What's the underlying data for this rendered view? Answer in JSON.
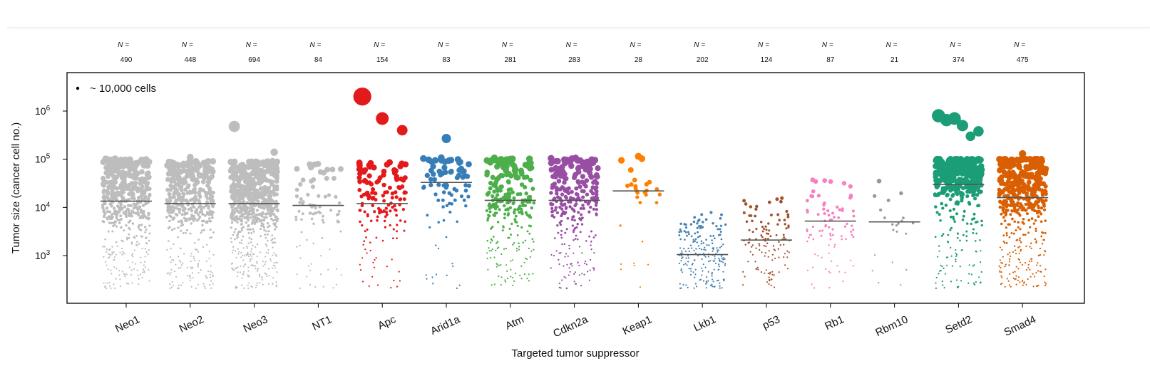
{
  "chart_data": {
    "type": "scatter",
    "title": "",
    "xlabel": "Targeted tumor suppressor",
    "ylabel": "Tumor size (cancer cell no.)",
    "y_scale": "log",
    "ylim": [
      200,
      3000000
    ],
    "y_ticks": [
      {
        "value": 1000,
        "base": "10",
        "exp": "3"
      },
      {
        "value": 10000,
        "base": "10",
        "exp": "4"
      },
      {
        "value": 100000,
        "base": "10",
        "exp": "5"
      },
      {
        "value": 1000000,
        "base": "10",
        "exp": "6"
      }
    ],
    "n_prefix": "N =",
    "legend": {
      "label": "~ 10,000 cells",
      "reference_size": 10000,
      "position": "top-left"
    },
    "grid": false,
    "groups": [
      {
        "name": "Neo1",
        "n": 490,
        "median": 13500,
        "color": "#bdbdbd"
      },
      {
        "name": "Neo2",
        "n": 448,
        "median": 12000,
        "color": "#bdbdbd"
      },
      {
        "name": "Neo3",
        "n": 694,
        "median": 12000,
        "color": "#bdbdbd"
      },
      {
        "name": "NT1",
        "n": 84,
        "median": 11000,
        "color": "#bdbdbd"
      },
      {
        "name": "Apc",
        "n": 154,
        "median": 12000,
        "color": "#e31a1c"
      },
      {
        "name": "Arid1a",
        "n": 83,
        "median": 33000,
        "color": "#377eb8"
      },
      {
        "name": "Atm",
        "n": 281,
        "median": 14000,
        "color": "#4daf4a"
      },
      {
        "name": "Cdkn2a",
        "n": 283,
        "median": 14000,
        "color": "#984ea3"
      },
      {
        "name": "Keap1",
        "n": 28,
        "median": 22000,
        "color": "#ff7f00"
      },
      {
        "name": "Lkb1",
        "n": 202,
        "median": 1050,
        "color": "#4682b4"
      },
      {
        "name": "p53",
        "n": 124,
        "median": 2100,
        "color": "#a0522d"
      },
      {
        "name": "Rb1",
        "n": 87,
        "median": 5200,
        "color": "#f781bf"
      },
      {
        "name": "Rbm10",
        "n": 21,
        "median": 5000,
        "color": "#999999"
      },
      {
        "name": "Setd2",
        "n": 374,
        "median": 30000,
        "color": "#1b9e77"
      },
      {
        "name": "Smad4",
        "n": 475,
        "median": 16000,
        "color": "#d95f02"
      }
    ],
    "notable_points": {
      "Neo2": [
        110000
      ],
      "Neo3": [
        480000,
        140000
      ],
      "Apc": [
        2000000,
        700000,
        400000
      ],
      "Arid1a": [
        270000
      ],
      "Keap1": [
        115000
      ],
      "Setd2": [
        800000,
        650000,
        700000,
        500000,
        300000,
        380000
      ],
      "Smad4": [
        130000
      ]
    }
  }
}
